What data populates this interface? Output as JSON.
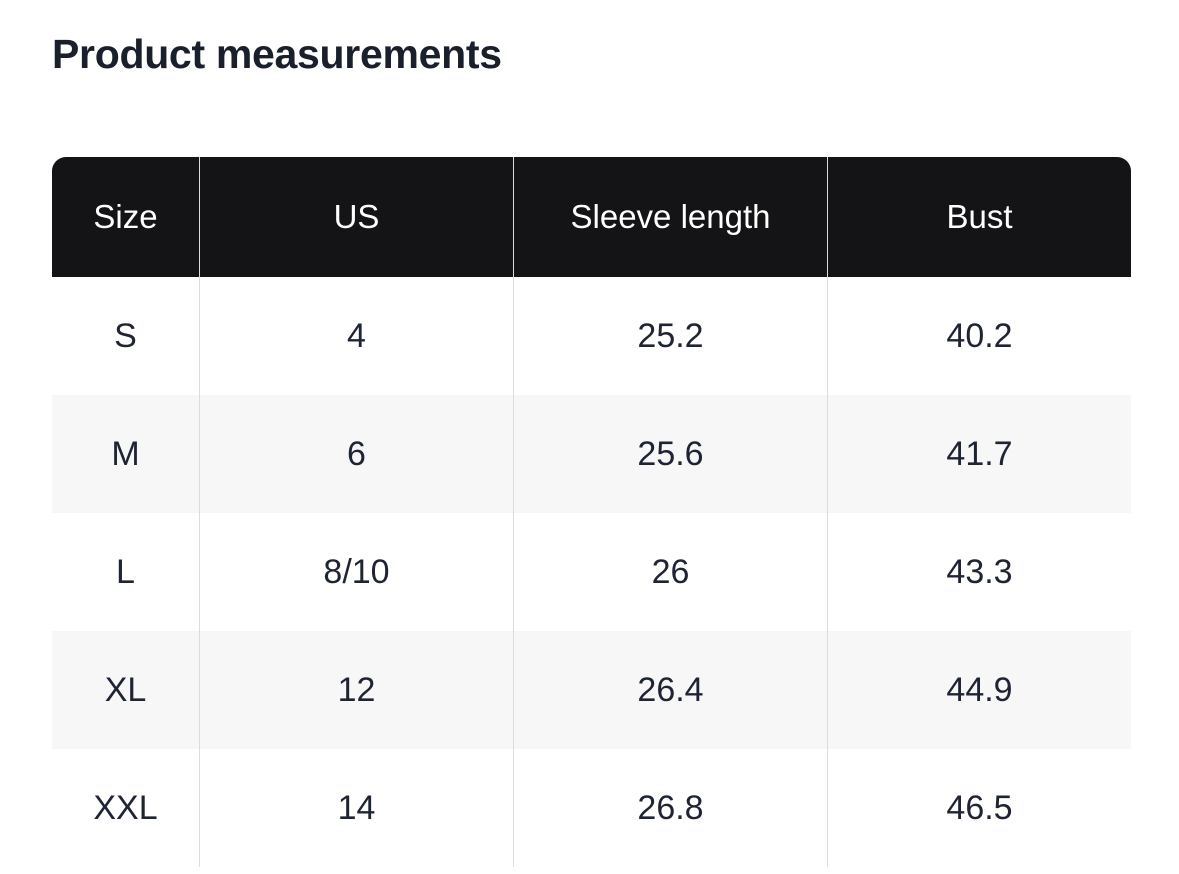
{
  "page": {
    "title": "Product measurements"
  },
  "table": {
    "columns": [
      "Size",
      "US",
      "Sleeve length",
      "Bust"
    ],
    "rows": [
      [
        "S",
        "4",
        "25.2",
        "40.2"
      ],
      [
        "M",
        "6",
        "25.6",
        "41.7"
      ],
      [
        "L",
        "8/10",
        "26",
        "43.3"
      ],
      [
        "XL",
        "12",
        "26.4",
        "44.9"
      ],
      [
        "XXL",
        "14",
        "26.8",
        "46.5"
      ]
    ]
  },
  "colors": {
    "title": "#1a1f2c",
    "header_bg": "#141416",
    "header_text": "#ffffff",
    "row_alt_bg": "#f7f7f8",
    "cell_text": "#1e2433",
    "divider": "#dcdcdc",
    "page_bg": "#ffffff"
  }
}
